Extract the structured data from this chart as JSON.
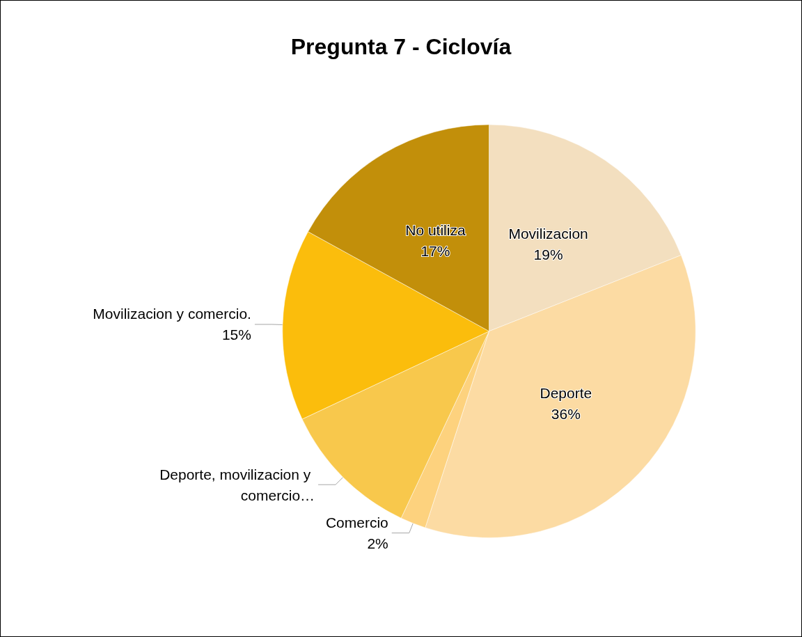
{
  "chart_data": {
    "type": "pie",
    "title": "Pregunta 7 - Ciclovía",
    "categories": [
      "Movilizacion",
      "Deporte",
      "Comercio",
      "Deporte, movilizacion y comercio…",
      "Movilizacion y comercio.",
      "No utiliza"
    ],
    "values": [
      19,
      36,
      2,
      11,
      15,
      17
    ],
    "value_labels": [
      "19%",
      "36%",
      "2%",
      null,
      "15%",
      "17%"
    ],
    "colors": [
      "#f3dfbf",
      "#fcdba3",
      "#fdd27e",
      "#f8c84c",
      "#fbbd0c",
      "#c28f0a"
    ],
    "legend": false
  }
}
